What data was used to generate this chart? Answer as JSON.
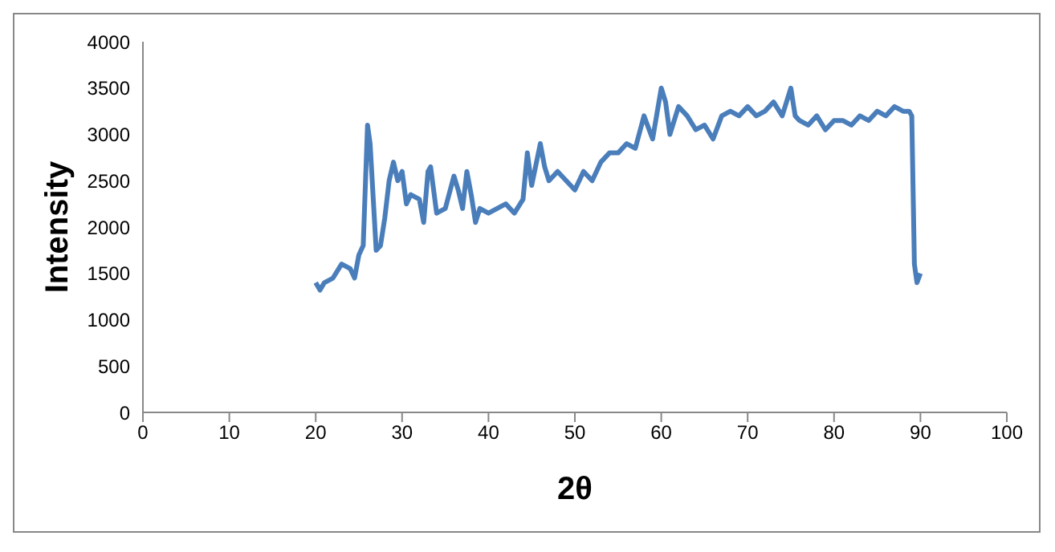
{
  "chart_data": {
    "type": "line",
    "xlabel": "2θ",
    "ylabel": "Intensity",
    "xlim": [
      0,
      100
    ],
    "xticks": [
      0,
      10,
      20,
      30,
      40,
      50,
      60,
      70,
      80,
      90,
      100
    ],
    "ylim": [
      0,
      4000
    ],
    "yticks": [
      0,
      500,
      1000,
      1500,
      2000,
      2500,
      3000,
      3500,
      4000
    ],
    "grid": false,
    "legend": false,
    "marker": "none",
    "line_style": "solid",
    "series": [
      {
        "color": "#4a7ebb",
        "x": [
          20,
          20.5,
          21,
          22,
          23,
          24,
          24.5,
          25,
          25.5,
          26,
          26.3,
          27,
          27.5,
          28,
          28.5,
          29,
          29.5,
          30,
          30.5,
          31,
          32,
          32.5,
          33,
          33.3,
          34,
          35,
          36,
          36.5,
          37,
          37.5,
          38,
          38.5,
          39,
          40,
          41,
          42,
          43,
          44,
          44.5,
          45,
          46,
          46.5,
          47,
          48,
          49,
          50,
          51,
          52,
          53,
          54,
          55,
          56,
          57,
          58,
          59,
          60,
          60.5,
          61,
          62,
          63,
          64,
          65,
          66,
          67,
          68,
          69,
          70,
          71,
          72,
          73,
          74,
          75,
          75.5,
          76,
          77,
          78,
          79,
          80,
          81,
          82,
          83,
          84,
          85,
          86,
          87,
          88,
          88.7,
          89,
          89.3,
          89.6,
          90
        ],
        "values": [
          1400,
          1320,
          1400,
          1450,
          1600,
          1550,
          1450,
          1700,
          1800,
          3100,
          2900,
          1750,
          1800,
          2100,
          2500,
          2700,
          2500,
          2600,
          2250,
          2350,
          2300,
          2050,
          2600,
          2650,
          2150,
          2200,
          2550,
          2400,
          2200,
          2600,
          2350,
          2050,
          2200,
          2150,
          2200,
          2250,
          2150,
          2300,
          2800,
          2450,
          2900,
          2650,
          2500,
          2600,
          2500,
          2400,
          2600,
          2500,
          2700,
          2800,
          2800,
          2900,
          2850,
          3200,
          2950,
          3500,
          3350,
          3000,
          3300,
          3200,
          3050,
          3100,
          2950,
          3200,
          3250,
          3200,
          3300,
          3200,
          3250,
          3350,
          3200,
          3500,
          3200,
          3150,
          3100,
          3200,
          3050,
          3150,
          3150,
          3100,
          3200,
          3150,
          3250,
          3200,
          3300,
          3250,
          3250,
          3200,
          1600,
          1400,
          1500
        ]
      }
    ]
  }
}
